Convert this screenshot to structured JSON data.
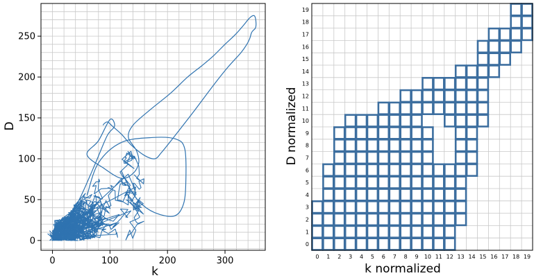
{
  "chart_data": [
    {
      "type": "line",
      "xlabel": "k",
      "ylabel": "D",
      "xlim": [
        -20,
        370
      ],
      "ylim": [
        -12,
        290
      ],
      "xticks": [
        "0",
        "100",
        "200",
        "300"
      ],
      "xtick_values": [
        0,
        100,
        200,
        300
      ],
      "yticks": [
        "0",
        "50",
        "100",
        "150",
        "200",
        "250"
      ],
      "ytick_values": [
        0,
        50,
        100,
        150,
        200,
        250
      ],
      "grid": true,
      "color": "#2f73b0",
      "dense_cluster": {
        "k_range": [
          0,
          160
        ],
        "D_range": [
          0,
          115
        ]
      },
      "series": [
        {
          "x": [
            0,
            12,
            28,
            50,
            75,
            95,
            108,
            100,
            80,
            60,
            90,
            120,
            140,
            150,
            146,
            132,
            140,
            170,
            205,
            235,
            260,
            280,
            300,
            318,
            333,
            341,
            348,
            352,
            354,
            353,
            349,
            346,
            343,
            338,
            328,
            305,
            280,
            248,
            215,
            190,
            178,
            160,
            138,
            120,
            104,
            96,
            90,
            88
          ],
          "y": [
            0,
            8,
            25,
            55,
            95,
            128,
            140,
            148,
            122,
            105,
            88,
            76,
            82,
            95,
            110,
            126,
            141,
            160,
            180,
            200,
            214,
            226,
            240,
            252,
            264,
            271,
            275,
            274,
            266,
            260,
            257,
            254,
            247,
            240,
            230,
            212,
            190,
            160,
            130,
            108,
            100,
            104,
            116,
            130,
            140,
            145,
            143,
            141
          ]
        },
        {
          "x": [
            60,
            80,
            120,
            175,
            215,
            230,
            232,
            228,
            212,
            178,
            150,
            130,
            120
          ],
          "y": [
            55,
            95,
            120,
            126,
            124,
            112,
            75,
            45,
            30,
            34,
            48,
            70,
            85
          ]
        }
      ]
    },
    {
      "type": "heatmap",
      "xlabel": "k normalized",
      "ylabel": "D normalized",
      "xlim": [
        -0.5,
        19.5
      ],
      "ylim": [
        -0.5,
        19.5
      ],
      "xticks": [
        "0",
        "1",
        "2",
        "3",
        "4",
        "5",
        "6",
        "7",
        "8",
        "9",
        "10",
        "11",
        "12",
        "13",
        "14",
        "15",
        "16",
        "17",
        "18",
        "19"
      ],
      "yticks": [
        "0",
        "1",
        "2",
        "3",
        "4",
        "5",
        "6",
        "7",
        "8",
        "9",
        "10",
        "11",
        "12",
        "13",
        "14",
        "15",
        "16",
        "17",
        "18",
        "19"
      ],
      "grid": true,
      "color": "#3c6e9f",
      "column_ranges": [
        [
          0,
          3
        ],
        [
          0,
          6
        ],
        [
          0,
          9
        ],
        [
          0,
          10
        ],
        [
          0,
          10
        ],
        [
          0,
          10
        ],
        [
          0,
          11
        ],
        [
          0,
          11
        ],
        [
          0,
          12
        ],
        [
          0,
          12
        ],
        [
          0,
          13
        ],
        [
          0,
          13
        ],
        [
          0,
          13
        ],
        [
          2,
          14
        ],
        [
          6,
          14
        ],
        [
          10,
          16
        ],
        [
          14,
          17
        ],
        [
          15,
          17
        ],
        [
          16,
          19
        ],
        [
          17,
          19
        ]
      ],
      "holes": [
        [
          11,
          7
        ],
        [
          12,
          7
        ],
        [
          11,
          8
        ],
        [
          12,
          8
        ],
        [
          11,
          9
        ],
        [
          12,
          9
        ],
        [
          10,
          10
        ],
        [
          11,
          10
        ]
      ]
    }
  ]
}
